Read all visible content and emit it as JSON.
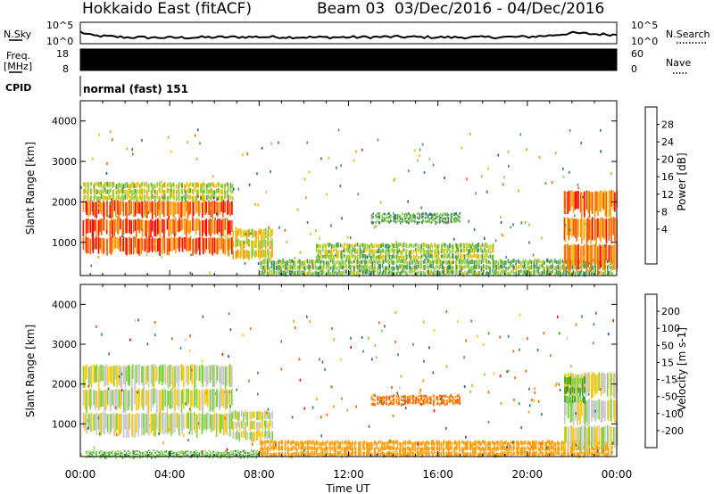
{
  "header": {
    "station": "Hokkaido East (fitACF)",
    "beam_date": "Beam 03  03/Dec/2016 - 04/Dec/2016"
  },
  "mode_label": "normal (fast) 151",
  "side_labels": {
    "nsky": "N.Sky",
    "freq_line1": "Freq.",
    "freq_line2": "[MHz]",
    "cpid": "CPID",
    "nsearch": "N.Search",
    "nave": "Nave"
  },
  "time_axis_label": "Time UT",
  "colors": {
    "power_scale": [
      "#0000ff",
      "#2a4fa8",
      "#3a7a68",
      "#4aa050",
      "#8ccf3a",
      "#e8c000",
      "#ff9a00",
      "#ff5a00",
      "#ff0000"
    ],
    "velocity_scale": [
      "#2040c0",
      "#2e6e6e",
      "#3a9a3a",
      "#7ed23a",
      "#c8c8c8",
      "#ffc800",
      "#ff9a00",
      "#ff5a00",
      "#ff0000"
    ]
  },
  "chart_data": [
    {
      "type": "line",
      "id": "noise-panel",
      "ylabel_left": "N.Sky",
      "ylabel_right": "N.Search",
      "y_tick_labels": [
        "10^5",
        "10^0"
      ],
      "right_tick_labels": [
        "10^5",
        "10^0"
      ],
      "x_tick_labels": [
        "00:00",
        "04:00",
        "08:00",
        "12:00",
        "16:00",
        "20:00",
        "00:00"
      ],
      "x": [
        0,
        0.5,
        2,
        4,
        6,
        8,
        10,
        12,
        14,
        16,
        18,
        20,
        21,
        22,
        23,
        24
      ],
      "values": [
        0.55,
        0.38,
        0.3,
        0.28,
        0.3,
        0.32,
        0.3,
        0.3,
        0.32,
        0.3,
        0.3,
        0.32,
        0.38,
        0.5,
        0.45,
        0.42
      ]
    },
    {
      "type": "area",
      "id": "frequency-panel",
      "ylabel_left": "Freq. [MHz]",
      "ylabel_right": "Nave",
      "y_tick_labels": [
        "18",
        "8"
      ],
      "right_tick_labels": [
        "60",
        "0"
      ],
      "ylim": [
        8,
        18
      ],
      "y2lim": [
        0,
        60
      ],
      "x": [
        0,
        24
      ],
      "values": [
        18,
        18
      ]
    },
    {
      "type": "heatmap",
      "id": "power-panel",
      "ylabel": "Slant Range [km]",
      "xlabel": "Time UT",
      "xlim": [
        0,
        24
      ],
      "ylim": [
        180,
        4500
      ],
      "y_tick_labels": [
        "1000",
        "2000",
        "3000",
        "4000"
      ],
      "x_tick_labels": [
        "00:00",
        "04:00",
        "08:00",
        "12:00",
        "16:00",
        "20:00",
        "00:00"
      ],
      "colorbar_label": "Power [dB]",
      "colorbar_ticks": [
        "4",
        "8",
        "12",
        "16",
        "20",
        "24",
        "28"
      ],
      "regions": [
        {
          "t0": 0.1,
          "t1": 6.8,
          "r0": 700,
          "r1": 2050,
          "value": 28
        },
        {
          "t0": 0.1,
          "t1": 6.8,
          "r0": 2050,
          "r1": 2500,
          "value": 18
        },
        {
          "t0": 6.8,
          "t1": 8.6,
          "r0": 600,
          "r1": 1350,
          "value": 20
        },
        {
          "t0": 8.0,
          "t1": 23.8,
          "r0": 200,
          "r1": 600,
          "value": 14
        },
        {
          "t0": 10.5,
          "t1": 18.5,
          "r0": 600,
          "r1": 1000,
          "value": 16
        },
        {
          "t0": 21.6,
          "t1": 24.0,
          "r0": 300,
          "r1": 2300,
          "value": 26
        },
        {
          "t0": 13.0,
          "t1": 17.0,
          "r0": 1500,
          "r1": 1750,
          "value": 12
        }
      ]
    },
    {
      "type": "heatmap",
      "id": "velocity-panel",
      "ylabel": "Slant Range [km]",
      "xlabel": "Time UT",
      "xlim": [
        0,
        24
      ],
      "ylim": [
        180,
        4500
      ],
      "y_tick_labels": [
        "1000",
        "2000",
        "3000",
        "4000"
      ],
      "x_tick_labels": [
        "00:00",
        "04:00",
        "08:00",
        "12:00",
        "16:00",
        "20:00",
        "00:00"
      ],
      "colorbar_label": "Velocity [m s-1]",
      "colorbar_ticks": [
        "200",
        "100",
        "50",
        "15",
        "-15",
        "-50",
        "-100",
        "-200"
      ],
      "regions": [
        {
          "t0": 0.1,
          "t1": 6.8,
          "r0": 700,
          "r1": 2500,
          "value": 0
        },
        {
          "t0": 6.8,
          "t1": 8.6,
          "r0": 600,
          "r1": 1350,
          "value": 0
        },
        {
          "t0": 8.0,
          "t1": 23.8,
          "r0": 200,
          "r1": 600,
          "value": -50
        },
        {
          "t0": 0.2,
          "t1": 8.0,
          "r0": 180,
          "r1": 350,
          "value": 30
        },
        {
          "t0": 21.6,
          "t1": 24.0,
          "r0": 300,
          "r1": 2300,
          "value": 0
        },
        {
          "t0": 21.6,
          "t1": 22.6,
          "r0": 1500,
          "r1": 2200,
          "value": 30
        },
        {
          "t0": 13.0,
          "t1": 17.0,
          "r0": 1500,
          "r1": 1750,
          "value": -80
        }
      ]
    }
  ]
}
